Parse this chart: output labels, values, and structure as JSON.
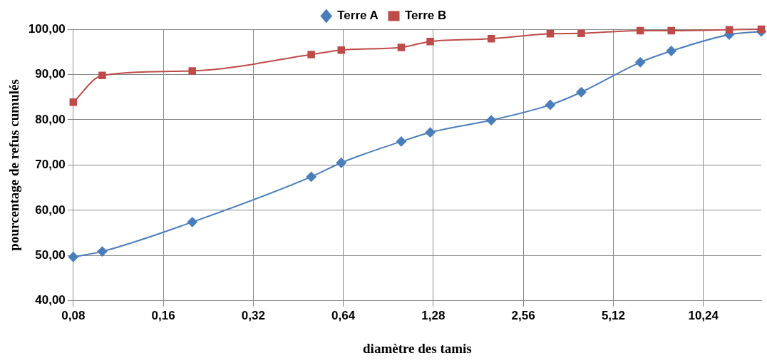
{
  "chart_data": {
    "type": "line",
    "xlabel": "diamètre des tamis",
    "ylabel": "pourcentage de refus cumulés",
    "x": [
      0.08,
      0.1,
      0.2,
      0.5,
      0.63,
      1,
      1.25,
      2,
      3.15,
      4,
      6.3,
      8,
      12.5,
      16
    ],
    "series": [
      {
        "name": "Terre A",
        "color": "#4a7ebb",
        "marker": "diamond",
        "values": [
          49.7,
          50.9,
          57.4,
          67.4,
          70.5,
          75.2,
          77.2,
          79.9,
          83.3,
          86.1,
          92.7,
          95.2,
          98.8,
          99.5
        ]
      },
      {
        "name": "Terre B",
        "color": "#be4b48",
        "marker": "square",
        "values": [
          83.9,
          89.8,
          90.8,
          94.4,
          95.4,
          96.0,
          97.3,
          97.9,
          99.0,
          99.1,
          99.7,
          99.7,
          99.9,
          100.0
        ]
      }
    ],
    "log": "x",
    "xlim": [
      0.08,
      16
    ],
    "xticks": [
      {
        "value": 0.08,
        "label": "0,08"
      },
      {
        "value": 0.16,
        "label": "0,16"
      },
      {
        "value": 0.32,
        "label": "0,32"
      },
      {
        "value": 0.64,
        "label": "0,64"
      },
      {
        "value": 1.28,
        "label": "1,28"
      },
      {
        "value": 2.56,
        "label": "2,56"
      },
      {
        "value": 5.12,
        "label": "5,12"
      },
      {
        "value": 10.24,
        "label": "10,24"
      }
    ],
    "ylim": [
      40,
      100
    ],
    "yticks": [
      {
        "value": 40,
        "label": "40,00"
      },
      {
        "value": 50,
        "label": "50,00"
      },
      {
        "value": 60,
        "label": "60,00"
      },
      {
        "value": 70,
        "label": "70,00"
      },
      {
        "value": 80,
        "label": "80,00"
      },
      {
        "value": 90,
        "label": "90,00"
      },
      {
        "value": 100,
        "label": "100,00"
      }
    ],
    "grid": true,
    "legend": "top",
    "line_style": "solid"
  }
}
